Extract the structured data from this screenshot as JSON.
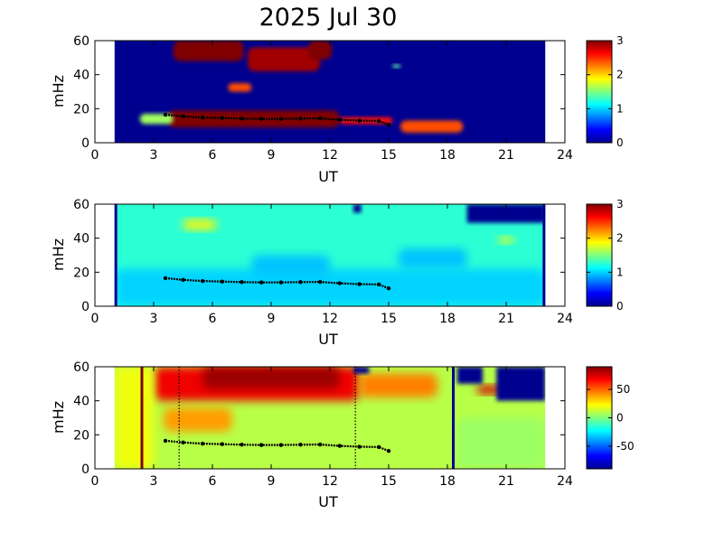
{
  "chart_data": [
    {
      "type": "heatmap",
      "title": "2025 Jul 30",
      "xlabel": "UT",
      "ylabel": "mHz",
      "xlim": [
        0,
        24
      ],
      "ylim": [
        0,
        60
      ],
      "xticks": [
        "0",
        "3",
        "6",
        "9",
        "12",
        "15",
        "18",
        "21",
        "24"
      ],
      "yticks": [
        "0",
        "20",
        "40",
        "60"
      ],
      "colorbar": {
        "range": [
          0,
          3
        ],
        "ticks": [
          "0",
          "1",
          "2",
          "3"
        ]
      },
      "data_window": [
        1.0,
        23.0
      ],
      "regions": [
        {
          "x": [
            3.7,
            12.5
          ],
          "y": [
            9,
            19
          ],
          "level": 3.0
        },
        {
          "x": [
            12.5,
            15.2
          ],
          "y": [
            11,
            15
          ],
          "level": 2.6
        },
        {
          "x": [
            15.6,
            18.8
          ],
          "y": [
            6,
            13
          ],
          "level": 2.4
        },
        {
          "x": [
            2.3,
            4.0
          ],
          "y": [
            11,
            17
          ],
          "level": 1.6
        },
        {
          "x": [
            4.0,
            7.6
          ],
          "y": [
            48,
            60
          ],
          "level": 3.0
        },
        {
          "x": [
            7.8,
            11.5
          ],
          "y": [
            42,
            56
          ],
          "level": 2.9
        },
        {
          "x": [
            10.9,
            12.1
          ],
          "y": [
            49,
            60
          ],
          "level": 3.0
        },
        {
          "x": [
            6.8,
            8.0
          ],
          "y": [
            30,
            35
          ],
          "level": 2.4
        },
        {
          "x": [
            15.2,
            15.6
          ],
          "y": [
            44,
            46
          ],
          "level": 1.4
        }
      ],
      "peak_trace": {
        "x": [
          3.6,
          4.5,
          5.5,
          6.5,
          7.5,
          8.5,
          9.5,
          10.5,
          11.5,
          12.5,
          13.5,
          14.5,
          15.0
        ],
        "y": [
          16.5,
          15.5,
          14.8,
          14.5,
          14.2,
          14.0,
          14.0,
          14.2,
          14.3,
          13.5,
          13.0,
          12.8,
          10.5
        ]
      }
    },
    {
      "type": "heatmap",
      "xlabel": "UT",
      "ylabel": "mHz",
      "xlim": [
        0,
        24
      ],
      "ylim": [
        0,
        60
      ],
      "xticks": [
        "0",
        "3",
        "6",
        "9",
        "12",
        "15",
        "18",
        "21",
        "24"
      ],
      "yticks": [
        "0",
        "20",
        "40",
        "60"
      ],
      "colorbar": {
        "range": [
          0,
          3
        ],
        "ticks": [
          "0",
          "1",
          "2",
          "3"
        ]
      },
      "data_window": [
        1.0,
        23.0
      ],
      "background_level": 1.25,
      "regions": [
        {
          "x": [
            4.5,
            6.2
          ],
          "y": [
            45,
            51
          ],
          "level": 1.9
        },
        {
          "x": [
            1.0,
            23.0
          ],
          "y": [
            0,
            22
          ],
          "level": 1.0
        },
        {
          "x": [
            8.0,
            12.0
          ],
          "y": [
            18,
            30
          ],
          "level": 0.95
        },
        {
          "x": [
            15.5,
            19.0
          ],
          "y": [
            22,
            34
          ],
          "level": 0.95
        },
        {
          "x": [
            20.6,
            21.4
          ],
          "y": [
            37,
            41
          ],
          "level": 1.8
        }
      ],
      "gaps": [
        {
          "x": [
            19.0,
            23.0
          ],
          "y": [
            49,
            60
          ]
        },
        {
          "x": [
            13.2,
            13.6
          ],
          "y": [
            55,
            60
          ]
        }
      ],
      "peak_trace": {
        "x": [
          3.6,
          4.5,
          5.5,
          6.5,
          7.5,
          8.5,
          9.5,
          10.5,
          11.5,
          12.5,
          13.5,
          14.5,
          15.0
        ],
        "y": [
          16.5,
          15.5,
          14.8,
          14.5,
          14.2,
          14.0,
          14.0,
          14.2,
          14.3,
          13.5,
          13.0,
          12.8,
          10.5
        ]
      }
    },
    {
      "type": "heatmap",
      "xlabel": "UT",
      "ylabel": "mHz",
      "xlim": [
        0,
        24
      ],
      "ylim": [
        0,
        60
      ],
      "xticks": [
        "0",
        "3",
        "6",
        "9",
        "12",
        "15",
        "18",
        "21",
        "24"
      ],
      "yticks": [
        "0",
        "20",
        "40",
        "60"
      ],
      "colorbar": {
        "range": [
          -90,
          90
        ],
        "ticks": [
          "-50",
          "0",
          "50"
        ]
      },
      "data_window": [
        1.0,
        23.0
      ],
      "background_level": 10,
      "regions": [
        {
          "x": [
            3.0,
            13.5
          ],
          "y": [
            40,
            60
          ],
          "level": 70
        },
        {
          "x": [
            5.5,
            12.5
          ],
          "y": [
            47,
            60
          ],
          "level": 85
        },
        {
          "x": [
            13.5,
            17.5
          ],
          "y": [
            42,
            56
          ],
          "level": 45
        },
        {
          "x": [
            3.5,
            7.0
          ],
          "y": [
            22,
            36
          ],
          "level": 40
        },
        {
          "x": [
            1.0,
            3.0
          ],
          "y": [
            0,
            60
          ],
          "level": 20
        },
        {
          "x": [
            18.5,
            23.0
          ],
          "y": [
            0,
            30
          ],
          "level": 5
        },
        {
          "x": [
            19.5,
            20.8
          ],
          "y": [
            44,
            49
          ],
          "level": 75
        }
      ],
      "gaps": [
        {
          "x": [
            20.5,
            23.0
          ],
          "y": [
            40,
            60
          ]
        },
        {
          "x": [
            18.5,
            19.8
          ],
          "y": [
            50,
            60
          ]
        },
        {
          "x": [
            13.2,
            14.0
          ],
          "y": [
            56,
            60
          ]
        }
      ],
      "vertical_markers": [
        {
          "x": 2.4,
          "level": 90
        },
        {
          "x": 18.3,
          "level": -90
        }
      ],
      "dotted_lines_x": [
        4.3,
        13.3
      ],
      "peak_trace": {
        "x": [
          3.6,
          4.5,
          5.5,
          6.5,
          7.5,
          8.5,
          9.5,
          10.5,
          11.5,
          12.5,
          13.5,
          14.5,
          15.0
        ],
        "y": [
          16.5,
          15.5,
          14.8,
          14.5,
          14.2,
          14.0,
          14.0,
          14.2,
          14.3,
          13.5,
          13.0,
          12.8,
          10.5
        ]
      }
    }
  ]
}
